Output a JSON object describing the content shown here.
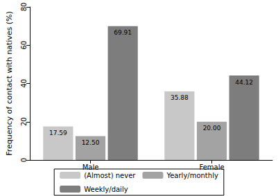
{
  "chart_data": {
    "type": "bar",
    "y_label": "Frequency of contact with natives (%)",
    "categories": [
      "Male",
      "Female"
    ],
    "series": [
      {
        "name": "(Almost) never",
        "color": "#c8c8c8",
        "values": [
          17.59,
          35.88
        ],
        "value_labels": [
          "17.59",
          "35.88"
        ]
      },
      {
        "name": "Yearly/monthly",
        "color": "#a3a3a3",
        "values": [
          12.5,
          20
        ],
        "value_labels": [
          "12.50",
          "20.00"
        ]
      },
      {
        "name": "Weekly/daily",
        "color": "#7d7d7d",
        "values": [
          69.91,
          44.12
        ],
        "value_labels": [
          "69.91",
          "44.12"
        ]
      }
    ],
    "ylim": [
      0,
      80
    ],
    "yticks": [
      0,
      20,
      40,
      60,
      80
    ],
    "grid": false,
    "legend": "bottom",
    "data_labels": true
  }
}
